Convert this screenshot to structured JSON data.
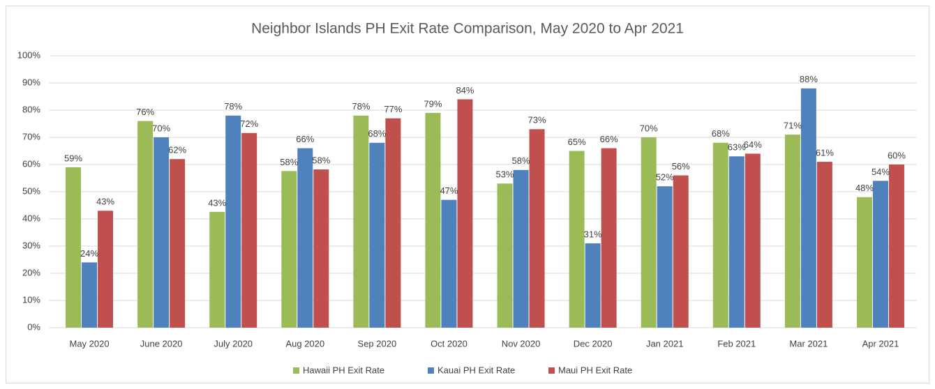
{
  "chart_data": {
    "type": "bar",
    "title": "Neighbor Islands PH Exit Rate Comparison, May 2020 to Apr 2021",
    "categories": [
      "May 2020",
      "June 2020",
      "July 2020",
      "Aug 2020",
      "Sep 2020",
      "Oct 2020",
      "Nov 2020",
      "Dec 2020",
      "Jan 2021",
      "Feb 2021",
      "Mar 2021",
      "Apr 2021"
    ],
    "series": [
      {
        "name": "Hawaii PH Exit Rate",
        "color": "#9bbb59",
        "values": [
          59,
          76,
          42.6,
          57.6,
          78,
          79,
          53,
          65,
          70,
          68,
          71,
          48
        ],
        "value_labels": [
          "59%",
          "76%",
          "43%",
          "58%",
          "78%",
          "79%",
          "53%",
          "65%",
          "70%",
          "68%",
          "71%",
          "48%"
        ]
      },
      {
        "name": "Kauai PH Exit Rate",
        "color": "#4f81bd",
        "values": [
          24,
          70,
          78,
          66,
          68,
          47,
          58,
          31,
          52,
          63,
          88,
          54
        ],
        "value_labels": [
          "24%",
          "70%",
          "78%",
          "66%",
          "68%",
          "47%",
          "58%",
          "31%",
          "52%",
          "63%",
          "88%",
          "54%"
        ]
      },
      {
        "name": "Maui PH Exit Rate",
        "color": "#c0504d",
        "values": [
          43,
          62,
          71.6,
          58.2,
          77,
          84,
          73,
          66,
          56,
          64,
          61,
          60
        ],
        "value_labels": [
          "43%",
          "62%",
          "72%",
          "58%",
          "77%",
          "84%",
          "73%",
          "66%",
          "56%",
          "64%",
          "61%",
          "60%"
        ]
      }
    ],
    "ylim": [
      0,
      100
    ],
    "yticks": [
      {
        "value": 0,
        "label": "0%"
      },
      {
        "value": 10,
        "label": "10%"
      },
      {
        "value": 20,
        "label": "20%"
      },
      {
        "value": 30,
        "label": "30%"
      },
      {
        "value": 40,
        "label": "40%"
      },
      {
        "value": 50,
        "label": "50%"
      },
      {
        "value": 60,
        "label": "60%"
      },
      {
        "value": 70,
        "label": "70%"
      },
      {
        "value": 80,
        "label": "80%"
      },
      {
        "value": 90,
        "label": "90%"
      },
      {
        "value": 100,
        "label": "100%"
      }
    ],
    "grid": true,
    "legend": "bottom"
  }
}
